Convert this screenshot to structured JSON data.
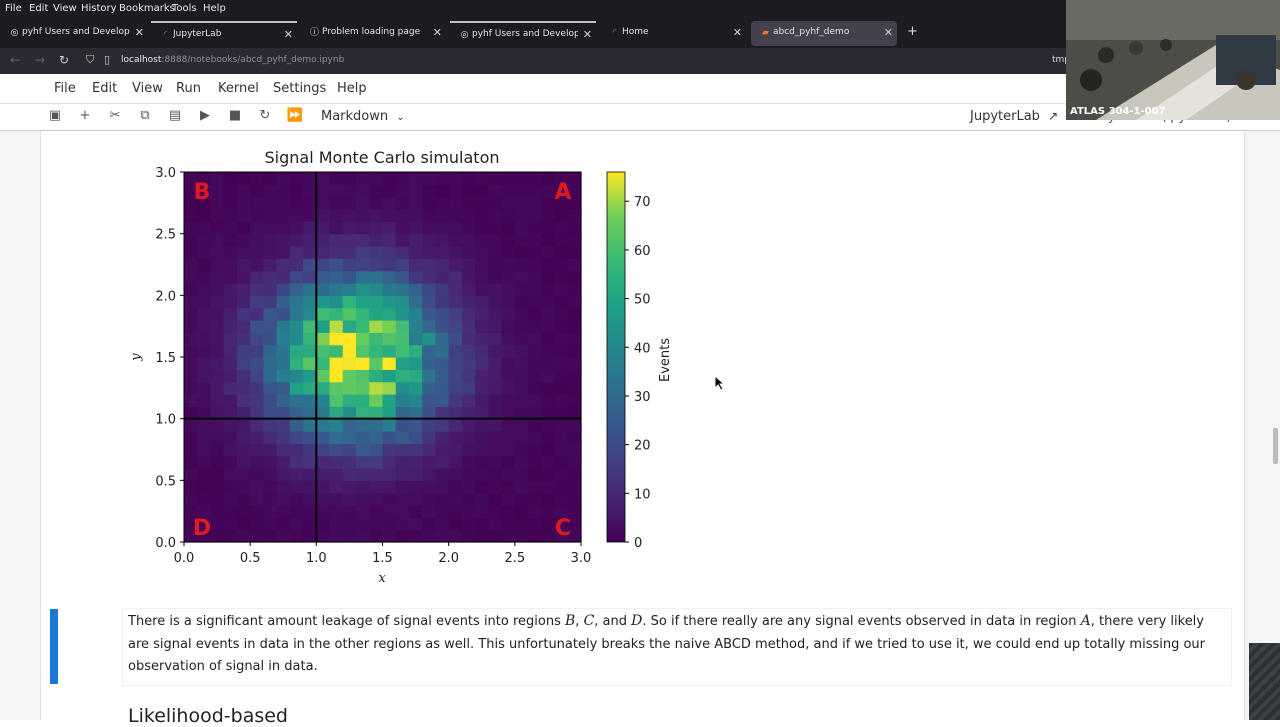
{
  "browser": {
    "menu": [
      "File",
      "Edit",
      "View",
      "History",
      "Bookmarks",
      "Tools",
      "Help"
    ],
    "tabs": [
      {
        "label": "pyhf Users and Developers",
        "icon": "globe-icon"
      },
      {
        "label": "JupyterLab",
        "icon": "loading-icon"
      },
      {
        "label": "Problem loading page",
        "icon": "info-icon"
      },
      {
        "label": "pyhf Users and Developers",
        "icon": "globe-icon"
      },
      {
        "label": "Home",
        "icon": "loading-icon"
      },
      {
        "label": "abcd_pyhf_demo",
        "icon": "jupyter-icon"
      }
    ],
    "url_host": "localhost",
    "url_path": ":8888/notebooks/abcd_pyhf_demo.ipynb",
    "tmp_label": "tmp"
  },
  "jupyter": {
    "menu": [
      "File",
      "Edit",
      "View",
      "Run",
      "Kernel",
      "Settings",
      "Help"
    ],
    "cell_type": "Markdown",
    "jl_link": "JupyterLab",
    "kernel": "Python 3 (ipykernel)"
  },
  "chart_data": {
    "type": "heatmap",
    "title": "Signal Monte Carlo simulaton",
    "xlabel": "x",
    "ylabel": "y",
    "xlim": [
      0,
      3
    ],
    "ylim": [
      0,
      3
    ],
    "xticks": [
      "0.0",
      "0.5",
      "1.0",
      "1.5",
      "2.0",
      "2.5",
      "3.0"
    ],
    "yticks": [
      "0.0",
      "0.5",
      "1.0",
      "1.5",
      "2.0",
      "2.5",
      "3.0"
    ],
    "colorbar_label": "Events",
    "colorbar_ticks": [
      "0",
      "10",
      "20",
      "30",
      "40",
      "50",
      "60",
      "70"
    ],
    "color_range": [
      0,
      76
    ],
    "bins": 30,
    "peak_center": [
      1.3,
      1.5
    ],
    "peak_value": 75,
    "region_labels": [
      {
        "text": "A",
        "corner": "top-right"
      },
      {
        "text": "B",
        "corner": "top-left"
      },
      {
        "text": "C",
        "corner": "bottom-right"
      },
      {
        "text": "D",
        "corner": "bottom-left"
      }
    ],
    "divider_lines": {
      "x": 1.0,
      "y": 1.0
    }
  },
  "markdown": {
    "p1": "There is a significant amount leakage of signal events into regions ",
    "mB": "B",
    "c1": ", ",
    "mC": "C",
    "c2": ", and ",
    "mD": "D",
    "p2": ". So if there really are any signal events observed in data in region ",
    "mA": "A",
    "p3": ", there very likely are signal events in data in the other regions as well. This unfortunately breaks the naive ABCD method, and if we tried to use it, we could end up totally missing our observation of signal in data.",
    "heading": "Likelihood-based"
  },
  "webcam": {
    "label": "ATLAS 304-1-007"
  }
}
